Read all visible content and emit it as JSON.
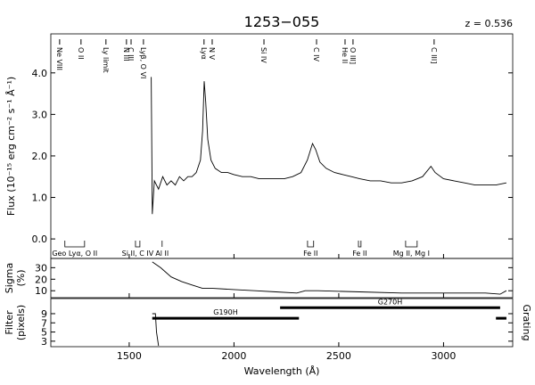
{
  "chart_data": [
    {
      "type": "line",
      "title": "1253−055",
      "annotation": "z = 0.536",
      "ylabel": "Flux (10⁻¹⁵ erg cm⁻² s⁻¹ Å⁻¹)",
      "ylim": [
        -0.47,
        4.94
      ],
      "yticks": [
        {
          "value": 0,
          "label": "0.0"
        },
        {
          "value": 1,
          "label": "1.0"
        },
        {
          "value": 2,
          "label": "2.0"
        },
        {
          "value": 3,
          "label": "3.0"
        },
        {
          "value": 4,
          "label": "4.0"
        }
      ],
      "x": [
        1605,
        1610,
        1620,
        1640,
        1660,
        1680,
        1700,
        1720,
        1740,
        1760,
        1780,
        1800,
        1820,
        1840,
        1850,
        1858,
        1865,
        1875,
        1890,
        1910,
        1940,
        1970,
        2000,
        2040,
        2080,
        2120,
        2160,
        2200,
        2240,
        2280,
        2320,
        2350,
        2375,
        2390,
        2410,
        2440,
        2480,
        2520,
        2560,
        2600,
        2650,
        2700,
        2750,
        2800,
        2850,
        2900,
        2940,
        2960,
        3000,
        3050,
        3100,
        3150,
        3200,
        3250,
        3300
      ],
      "values": [
        3.9,
        0.6,
        1.4,
        1.2,
        1.5,
        1.3,
        1.4,
        1.3,
        1.5,
        1.4,
        1.5,
        1.5,
        1.6,
        1.9,
        2.6,
        3.8,
        3.3,
        2.4,
        1.9,
        1.7,
        1.6,
        1.6,
        1.55,
        1.5,
        1.5,
        1.45,
        1.45,
        1.45,
        1.45,
        1.5,
        1.6,
        1.9,
        2.3,
        2.15,
        1.85,
        1.7,
        1.6,
        1.55,
        1.5,
        1.45,
        1.4,
        1.4,
        1.35,
        1.35,
        1.4,
        1.5,
        1.75,
        1.6,
        1.45,
        1.4,
        1.35,
        1.3,
        1.3,
        1.3,
        1.35
      ],
      "emission_lines": [
        {
          "label": "Ne VIII",
          "x": 1168
        },
        {
          "label": "O II",
          "x": 1270
        },
        {
          "label": "Ly limit",
          "x": 1389
        },
        {
          "label": "N III",
          "x": 1487
        },
        {
          "label": "C III",
          "x": 1509
        },
        {
          "label": "Lyβ, O VI",
          "x": 1568
        },
        {
          "label": "Lyα",
          "x": 1857
        },
        {
          "label": "N V",
          "x": 1896
        },
        {
          "label": "Si IV",
          "x": 2143
        },
        {
          "label": "C IV",
          "x": 2394
        },
        {
          "label": "He II",
          "x": 2530
        },
        {
          "label": "O III]",
          "x": 2568
        },
        {
          "label": "C III]",
          "x": 2955
        }
      ],
      "absorption_lines": [
        {
          "label": "Geo Lyα, O II",
          "start": 1193,
          "end": 1287
        },
        {
          "label": "Si II, C IV",
          "start": 1530,
          "end": 1551
        },
        {
          "label": "Al II",
          "start": 1657,
          "end": 1657
        },
        {
          "label": "Fe II",
          "start": 2351,
          "end": 2380
        },
        {
          "label": "Fe II",
          "start": 2594,
          "end": 2606
        },
        {
          "label": "Mg II, Mg I",
          "start": 2819,
          "end": 2874
        }
      ]
    },
    {
      "type": "line",
      "ylabel": [
        "Sigma",
        "(%)"
      ],
      "ylim": [
        4,
        38
      ],
      "yticks": [
        10,
        20,
        30
      ],
      "x": [
        1610,
        1650,
        1700,
        1750,
        1800,
        1850,
        1900,
        2000,
        2100,
        2200,
        2300,
        2340,
        2400,
        2600,
        2800,
        3000,
        3200,
        3270,
        3300
      ],
      "values": [
        35,
        30,
        22,
        18,
        15,
        12,
        12,
        11,
        10,
        9,
        8,
        10,
        10,
        9,
        8,
        8,
        8,
        7,
        10
      ]
    },
    {
      "type": "line",
      "ylabel": [
        "Filter",
        "(pixels)"
      ],
      "right_label": "Grating",
      "xlabel": "Wavelength (Å)",
      "xlim": [
        1126,
        3330
      ],
      "xticks": [
        1500,
        2000,
        2500,
        3000
      ],
      "ylim": [
        1.8,
        12.3
      ],
      "yticks": [
        3,
        5,
        7,
        9
      ],
      "x": [
        1610,
        1625,
        1630,
        1640
      ],
      "values": [
        9,
        9,
        5,
        2
      ],
      "gratings": [
        {
          "name": "G190H",
          "start": 1610,
          "end": 2310,
          "level": 8
        },
        {
          "name": "G270H",
          "start": 2220,
          "end": 3270,
          "level": 10.3
        },
        {
          "start": 3250,
          "end": 3300,
          "level": 8
        }
      ]
    }
  ]
}
